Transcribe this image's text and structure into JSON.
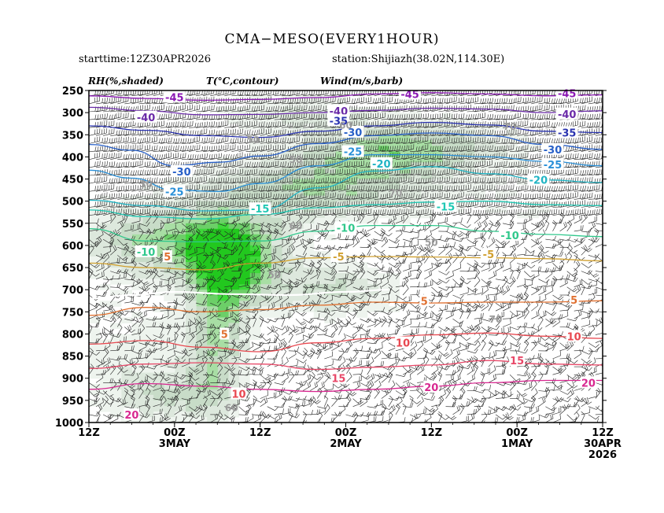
{
  "header": {
    "title": "CMA−MESO(EVERY1HOUR)",
    "starttime": "starttime:12Z30APR2026",
    "station": "station:Shijiazh(38.02N,114.30E)"
  },
  "legend": {
    "rh": "RH(%,shaded)",
    "temp": "T(°C,contour)",
    "wind": "Wind(m/s,barb)"
  },
  "chart_data": {
    "type": "heatmap",
    "description_x": "time axis reversed: latest on left, earliest on right",
    "x_ticks": [
      {
        "label": "12Z",
        "sub": "",
        "hours": 72
      },
      {
        "label": "00Z",
        "sub": "3MAY",
        "hours": 60
      },
      {
        "label": "12Z",
        "sub": "",
        "hours": 48
      },
      {
        "label": "00Z",
        "sub": "2MAY",
        "hours": 36
      },
      {
        "label": "12Z",
        "sub": "",
        "hours": 24
      },
      {
        "label": "00Z",
        "sub": "1MAY",
        "hours": 12
      },
      {
        "label": "12Z",
        "sub": "30APR",
        "sub2": "2026",
        "hours": 0
      }
    ],
    "xlim": [
      72,
      0
    ],
    "y_ticks": [
      250,
      300,
      350,
      400,
      450,
      500,
      550,
      600,
      650,
      700,
      750,
      800,
      850,
      900,
      950,
      1000
    ],
    "ylim": [
      250,
      1000
    ],
    "temp_contours": [
      {
        "level": -45,
        "color": "#8c1ab4",
        "pts": [
          [
            72,
            262
          ],
          [
            64,
            268
          ],
          [
            56,
            272
          ],
          [
            48,
            270
          ],
          [
            40,
            266
          ],
          [
            32,
            258
          ],
          [
            24,
            255
          ],
          [
            16,
            258
          ],
          [
            8,
            262
          ],
          [
            0,
            260
          ]
        ],
        "labels": [
          [
            60,
            265
          ],
          [
            27,
            258
          ],
          [
            5,
            256
          ]
        ]
      },
      {
        "level": -40,
        "color": "#6a2aa8",
        "pts": [
          [
            72,
            288
          ],
          [
            64,
            296
          ],
          [
            56,
            305
          ],
          [
            48,
            304
          ],
          [
            40,
            300
          ],
          [
            32,
            295
          ],
          [
            24,
            290
          ],
          [
            16,
            292
          ],
          [
            8,
            300
          ],
          [
            0,
            296
          ]
        ],
        "labels": [
          [
            64,
            310
          ],
          [
            37,
            296
          ],
          [
            5,
            303
          ]
        ]
      },
      {
        "level": -35,
        "color": "#2a33b0",
        "pts": [
          [
            72,
            330
          ],
          [
            64,
            340
          ],
          [
            56,
            352
          ],
          [
            48,
            356
          ],
          [
            40,
            342
          ],
          [
            32,
            330
          ],
          [
            24,
            322
          ],
          [
            16,
            328
          ],
          [
            8,
            342
          ],
          [
            0,
            345
          ]
        ],
        "labels": [
          [
            37,
            318
          ],
          [
            5,
            345
          ]
        ]
      },
      {
        "level": -30,
        "color": "#2860c8",
        "pts": [
          [
            72,
            372
          ],
          [
            66,
            385
          ],
          [
            60,
            420
          ],
          [
            54,
            412
          ],
          [
            48,
            398
          ],
          [
            40,
            370
          ],
          [
            32,
            352
          ],
          [
            24,
            346
          ],
          [
            16,
            352
          ],
          [
            8,
            372
          ],
          [
            0,
            383
          ]
        ],
        "labels": [
          [
            59,
            433
          ],
          [
            35,
            344
          ],
          [
            7,
            383
          ]
        ]
      },
      {
        "level": -25,
        "color": "#2a90d8",
        "pts": [
          [
            72,
            430
          ],
          [
            66,
            448
          ],
          [
            60,
            475
          ],
          [
            54,
            478
          ],
          [
            48,
            460
          ],
          [
            40,
            420
          ],
          [
            32,
            395
          ],
          [
            24,
            395
          ],
          [
            16,
            400
          ],
          [
            8,
            410
          ],
          [
            0,
            420
          ]
        ],
        "labels": [
          [
            60,
            478
          ],
          [
            35,
            388
          ],
          [
            7,
            417
          ]
        ]
      },
      {
        "level": -20,
        "color": "#20b4c4",
        "pts": [
          [
            72,
            498
          ],
          [
            64,
            510
          ],
          [
            56,
            522
          ],
          [
            48,
            520
          ],
          [
            40,
            470
          ],
          [
            32,
            432
          ],
          [
            24,
            422
          ],
          [
            16,
            438
          ],
          [
            8,
            452
          ],
          [
            0,
            458
          ]
        ],
        "labels": [
          [
            31,
            415
          ],
          [
            9,
            452
          ]
        ]
      },
      {
        "level": -15,
        "color": "#20c8b4",
        "pts": [
          [
            72,
            520
          ],
          [
            64,
            535
          ],
          [
            56,
            540
          ],
          [
            48,
            530
          ],
          [
            40,
            515
          ],
          [
            32,
            508
          ],
          [
            24,
            502
          ],
          [
            16,
            500
          ],
          [
            8,
            508
          ],
          [
            0,
            510
          ]
        ],
        "labels": [
          [
            48,
            517
          ],
          [
            22,
            512
          ]
        ]
      },
      {
        "level": -10,
        "color": "#30c88c",
        "pts": [
          [
            72,
            562
          ],
          [
            64,
            590
          ],
          [
            56,
            592
          ],
          [
            48,
            590
          ],
          [
            40,
            568
          ],
          [
            32,
            555
          ],
          [
            24,
            555
          ],
          [
            16,
            568
          ],
          [
            8,
            575
          ],
          [
            0,
            580
          ]
        ],
        "labels": [
          [
            64,
            614
          ],
          [
            36,
            560
          ],
          [
            13,
            577
          ]
        ]
      },
      {
        "level": -5,
        "color": "#d0a030",
        "pts": [
          [
            72,
            640
          ],
          [
            64,
            650
          ],
          [
            56,
            655
          ],
          [
            48,
            640
          ],
          [
            40,
            628
          ],
          [
            32,
            625
          ],
          [
            24,
            626
          ],
          [
            16,
            628
          ],
          [
            8,
            630
          ],
          [
            0,
            635
          ]
        ],
        "labels": [
          [
            37,
            625
          ],
          [
            16,
            620
          ]
        ]
      },
      {
        "level": 0,
        "color": "#ffffff",
        "pts": [
          [
            72,
            720
          ],
          [
            66,
            712
          ],
          [
            60,
            705
          ],
          [
            52,
            710
          ],
          [
            44,
            712
          ],
          [
            36,
            705
          ],
          [
            30,
            700
          ]
        ],
        "labels": []
      },
      {
        "level": 5,
        "color": "#e07030",
        "pts": [
          [
            72,
            758
          ],
          [
            64,
            740
          ],
          [
            56,
            750
          ],
          [
            48,
            745
          ],
          [
            40,
            735
          ],
          [
            32,
            728
          ],
          [
            24,
            730
          ],
          [
            16,
            728
          ],
          [
            8,
            728
          ],
          [
            0,
            725
          ]
        ],
        "labels": [
          [
            61,
            625
          ],
          [
            53,
            800
          ],
          [
            25,
            725
          ],
          [
            4,
            723
          ]
        ]
      },
      {
        "level": 10,
        "color": "#e84850",
        "pts": [
          [
            72,
            823
          ],
          [
            64,
            815
          ],
          [
            56,
            830
          ],
          [
            48,
            840
          ],
          [
            40,
            820
          ],
          [
            32,
            810
          ],
          [
            24,
            802
          ],
          [
            16,
            798
          ],
          [
            8,
            805
          ],
          [
            0,
            810
          ]
        ],
        "labels": [
          [
            51,
            935
          ],
          [
            28,
            820
          ],
          [
            4,
            805
          ]
        ]
      },
      {
        "level": 15,
        "color": "#e84868",
        "pts": [
          [
            72,
            878
          ],
          [
            64,
            868
          ],
          [
            56,
            865
          ],
          [
            48,
            868
          ],
          [
            40,
            880
          ],
          [
            32,
            875
          ],
          [
            24,
            870
          ],
          [
            16,
            860
          ],
          [
            8,
            868
          ],
          [
            0,
            870
          ]
        ],
        "labels": [
          [
            37,
            900
          ],
          [
            12,
            860
          ]
        ]
      },
      {
        "level": 20,
        "color": "#d82890",
        "pts": [
          [
            72,
            925
          ],
          [
            64,
            912
          ],
          [
            56,
            918
          ],
          [
            48,
            925
          ],
          [
            40,
            930
          ],
          [
            32,
            925
          ],
          [
            24,
            918
          ],
          [
            16,
            910
          ],
          [
            8,
            905
          ],
          [
            0,
            905
          ]
        ],
        "labels": [
          [
            66,
            982
          ],
          [
            24,
            920
          ],
          [
            2,
            910
          ]
        ]
      }
    ],
    "rh_levels": [
      {
        "level": 70,
        "label_positions": [
          [
            29,
            480
          ],
          [
            15,
            765
          ],
          [
            13,
            330
          ]
        ]
      },
      {
        "level": 60,
        "label_positions": [
          [
            36,
            327
          ],
          [
            43,
            555
          ],
          [
            52,
            965
          ]
        ]
      },
      {
        "level": 50,
        "label_positions": [
          [
            43,
            405
          ],
          [
            49,
            360
          ],
          [
            46,
            665
          ],
          [
            24,
            592
          ]
        ]
      },
      {
        "level": 30,
        "label_positions": [
          [
            64,
            460
          ]
        ]
      }
    ]
  }
}
